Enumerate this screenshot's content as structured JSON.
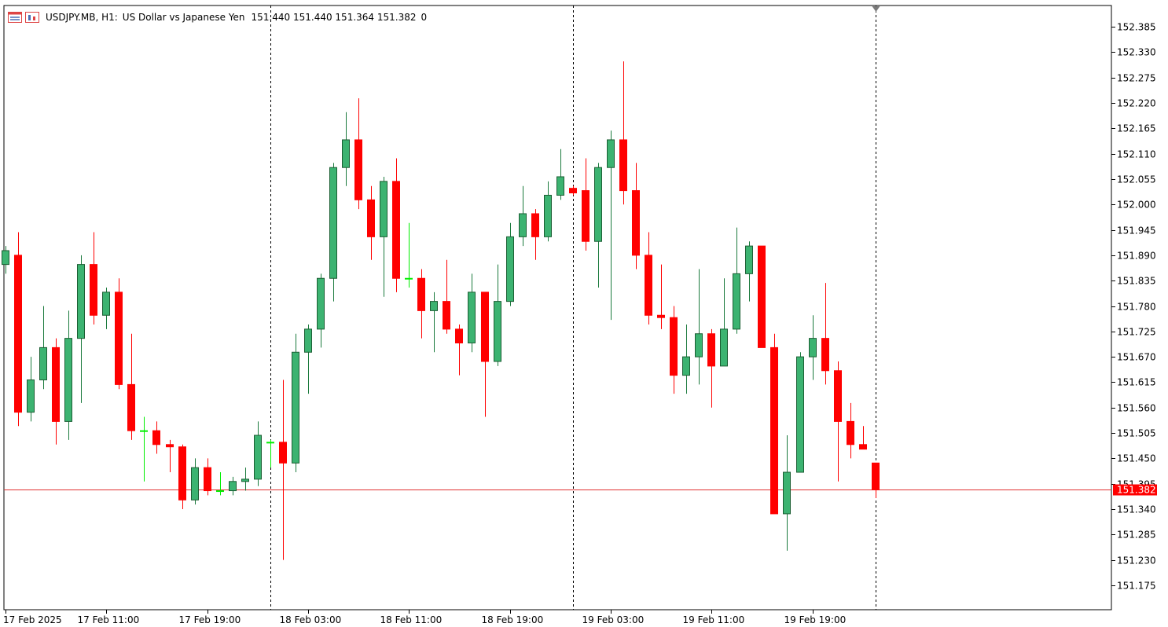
{
  "header": {
    "symbol": "USDJPY.MB, H1:",
    "description": "US Dollar vs Japanese Yen",
    "ohlc": "151.440 151.440 151.364 151.382",
    "volume": "0"
  },
  "icons": [
    "window-list-icon",
    "chart-window-icon"
  ],
  "colors": {
    "bull": "#3cb371",
    "bear": "#ff0000",
    "last_price_line": "#e03030",
    "doji_light": "#00ee00"
  },
  "chart_data": {
    "type": "candlestick",
    "ylim": [
      151.12,
      152.42
    ],
    "yticks": [
      "152.385",
      "152.330",
      "152.275",
      "152.220",
      "152.165",
      "152.110",
      "152.055",
      "152.000",
      "151.945",
      "151.890",
      "151.835",
      "151.780",
      "151.725",
      "151.670",
      "151.615",
      "151.560",
      "151.505",
      "151.450",
      "151.395",
      "151.340",
      "151.285",
      "151.230",
      "151.175"
    ],
    "xticks": [
      {
        "label": "17 Feb 2025",
        "index": 0
      },
      {
        "label": "17 Feb 11:00",
        "index": 8
      },
      {
        "label": "17 Feb 19:00",
        "index": 16
      },
      {
        "label": "18 Feb 03:00",
        "index": 24
      },
      {
        "label": "18 Feb 11:00",
        "index": 32
      },
      {
        "label": "18 Feb 19:00",
        "index": 40
      },
      {
        "label": "19 Feb 03:00",
        "index": 48
      },
      {
        "label": "19 Feb 11:00",
        "index": 56
      },
      {
        "label": "19 Feb 19:00",
        "index": 64
      }
    ],
    "day_separators": [
      21,
      45,
      69
    ],
    "last_price": "151.382",
    "candles": [
      {
        "o": 151.87,
        "h": 151.91,
        "l": 151.85,
        "c": 151.9
      },
      {
        "o": 151.89,
        "h": 151.94,
        "l": 151.52,
        "c": 151.55
      },
      {
        "o": 151.55,
        "h": 151.67,
        "l": 151.53,
        "c": 151.62
      },
      {
        "o": 151.62,
        "h": 151.78,
        "l": 151.6,
        "c": 151.69
      },
      {
        "o": 151.69,
        "h": 151.71,
        "l": 151.48,
        "c": 151.53
      },
      {
        "o": 151.53,
        "h": 151.77,
        "l": 151.49,
        "c": 151.71
      },
      {
        "o": 151.71,
        "h": 151.89,
        "l": 151.57,
        "c": 151.87
      },
      {
        "o": 151.87,
        "h": 151.94,
        "l": 151.74,
        "c": 151.76
      },
      {
        "o": 151.76,
        "h": 151.82,
        "l": 151.73,
        "c": 151.81
      },
      {
        "o": 151.81,
        "h": 151.84,
        "l": 151.6,
        "c": 151.61
      },
      {
        "o": 151.61,
        "h": 151.72,
        "l": 151.49,
        "c": 151.51
      },
      {
        "o": 151.51,
        "h": 151.54,
        "l": 151.4,
        "c": 151.51
      },
      {
        "o": 151.51,
        "h": 151.53,
        "l": 151.46,
        "c": 151.48
      },
      {
        "o": 151.48,
        "h": 151.49,
        "l": 151.42,
        "c": 151.475
      },
      {
        "o": 151.475,
        "h": 151.48,
        "l": 151.34,
        "c": 151.36
      },
      {
        "o": 151.36,
        "h": 151.45,
        "l": 151.35,
        "c": 151.43
      },
      {
        "o": 151.43,
        "h": 151.45,
        "l": 151.37,
        "c": 151.38
      },
      {
        "o": 151.38,
        "h": 151.42,
        "l": 151.37,
        "c": 151.38
      },
      {
        "o": 151.38,
        "h": 151.41,
        "l": 151.37,
        "c": 151.4
      },
      {
        "o": 151.4,
        "h": 151.43,
        "l": 151.38,
        "c": 151.405
      },
      {
        "o": 151.405,
        "h": 151.53,
        "l": 151.39,
        "c": 151.5
      },
      {
        "o": 151.485,
        "h": 151.49,
        "l": 151.43,
        "c": 151.485
      },
      {
        "o": 151.485,
        "h": 151.62,
        "l": 151.23,
        "c": 151.44
      },
      {
        "o": 151.44,
        "h": 151.72,
        "l": 151.42,
        "c": 151.68
      },
      {
        "o": 151.68,
        "h": 151.74,
        "l": 151.59,
        "c": 151.73
      },
      {
        "o": 151.73,
        "h": 151.85,
        "l": 151.69,
        "c": 151.84
      },
      {
        "o": 151.84,
        "h": 152.09,
        "l": 151.79,
        "c": 152.08
      },
      {
        "o": 152.08,
        "h": 152.2,
        "l": 152.04,
        "c": 152.14
      },
      {
        "o": 152.14,
        "h": 152.23,
        "l": 151.99,
        "c": 152.01
      },
      {
        "o": 152.01,
        "h": 152.04,
        "l": 151.88,
        "c": 151.93
      },
      {
        "o": 151.93,
        "h": 152.06,
        "l": 151.8,
        "c": 152.05
      },
      {
        "o": 152.05,
        "h": 152.1,
        "l": 151.81,
        "c": 151.84
      },
      {
        "o": 151.84,
        "h": 151.96,
        "l": 151.82,
        "c": 151.84
      },
      {
        "o": 151.84,
        "h": 151.86,
        "l": 151.71,
        "c": 151.77
      },
      {
        "o": 151.77,
        "h": 151.81,
        "l": 151.68,
        "c": 151.79
      },
      {
        "o": 151.79,
        "h": 151.88,
        "l": 151.72,
        "c": 151.73
      },
      {
        "o": 151.73,
        "h": 151.74,
        "l": 151.63,
        "c": 151.7
      },
      {
        "o": 151.7,
        "h": 151.85,
        "l": 151.68,
        "c": 151.81
      },
      {
        "o": 151.81,
        "h": 151.81,
        "l": 151.54,
        "c": 151.66
      },
      {
        "o": 151.66,
        "h": 151.87,
        "l": 151.65,
        "c": 151.79
      },
      {
        "o": 151.79,
        "h": 151.96,
        "l": 151.78,
        "c": 151.93
      },
      {
        "o": 151.93,
        "h": 152.04,
        "l": 151.91,
        "c": 151.98
      },
      {
        "o": 151.98,
        "h": 151.99,
        "l": 151.88,
        "c": 151.93
      },
      {
        "o": 151.93,
        "h": 152.05,
        "l": 151.92,
        "c": 152.02
      },
      {
        "o": 152.02,
        "h": 152.12,
        "l": 152.01,
        "c": 152.06
      },
      {
        "o": 152.035,
        "h": 152.04,
        "l": 152.02,
        "c": 152.025
      },
      {
        "o": 152.03,
        "h": 152.1,
        "l": 151.9,
        "c": 151.92
      },
      {
        "o": 151.92,
        "h": 152.09,
        "l": 151.82,
        "c": 152.08
      },
      {
        "o": 152.08,
        "h": 152.16,
        "l": 151.75,
        "c": 152.14
      },
      {
        "o": 152.14,
        "h": 152.31,
        "l": 152.0,
        "c": 152.03
      },
      {
        "o": 152.03,
        "h": 152.09,
        "l": 151.86,
        "c": 151.89
      },
      {
        "o": 151.89,
        "h": 151.94,
        "l": 151.74,
        "c": 151.76
      },
      {
        "o": 151.76,
        "h": 151.87,
        "l": 151.73,
        "c": 151.755
      },
      {
        "o": 151.755,
        "h": 151.78,
        "l": 151.59,
        "c": 151.63
      },
      {
        "o": 151.63,
        "h": 151.74,
        "l": 151.59,
        "c": 151.67
      },
      {
        "o": 151.67,
        "h": 151.86,
        "l": 151.61,
        "c": 151.72
      },
      {
        "o": 151.72,
        "h": 151.73,
        "l": 151.56,
        "c": 151.65
      },
      {
        "o": 151.65,
        "h": 151.84,
        "l": 151.65,
        "c": 151.73
      },
      {
        "o": 151.73,
        "h": 151.95,
        "l": 151.72,
        "c": 151.85
      },
      {
        "o": 151.85,
        "h": 151.92,
        "l": 151.79,
        "c": 151.91
      },
      {
        "o": 151.91,
        "h": 151.91,
        "l": 151.69,
        "c": 151.69
      },
      {
        "o": 151.69,
        "h": 151.72,
        "l": 151.33,
        "c": 151.33
      },
      {
        "o": 151.33,
        "h": 151.5,
        "l": 151.25,
        "c": 151.42
      },
      {
        "o": 151.42,
        "h": 151.68,
        "l": 151.42,
        "c": 151.67
      },
      {
        "o": 151.67,
        "h": 151.76,
        "l": 151.62,
        "c": 151.71
      },
      {
        "o": 151.71,
        "h": 151.83,
        "l": 151.61,
        "c": 151.64
      },
      {
        "o": 151.64,
        "h": 151.66,
        "l": 151.4,
        "c": 151.53
      },
      {
        "o": 151.53,
        "h": 151.57,
        "l": 151.45,
        "c": 151.48
      },
      {
        "o": 151.48,
        "h": 151.52,
        "l": 151.47,
        "c": 151.47
      },
      {
        "o": 151.44,
        "h": 151.44,
        "l": 151.364,
        "c": 151.382
      }
    ]
  }
}
